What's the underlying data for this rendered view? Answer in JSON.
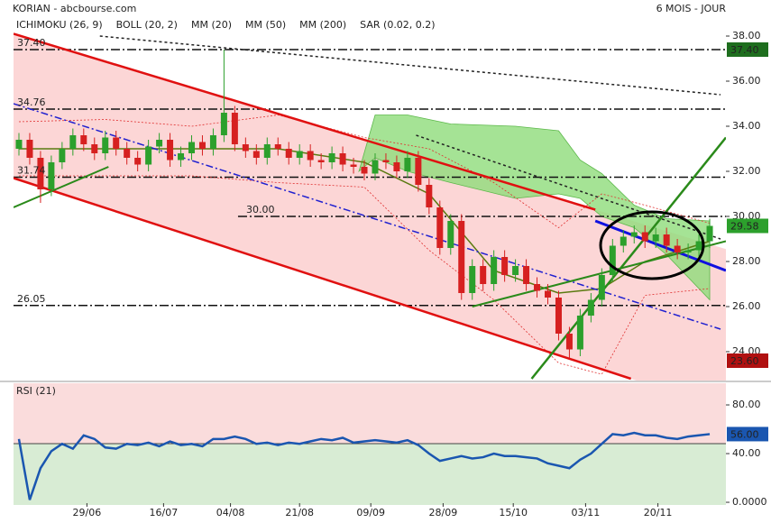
{
  "chart_data": {
    "type": "candlestick",
    "title": "KORIAN - abcbourse.com",
    "period": "6 MOIS - JOUR",
    "x": [
      0,
      1,
      2,
      3,
      4,
      5,
      6,
      7,
      8,
      9,
      10,
      11,
      12,
      13,
      14,
      15,
      16,
      17,
      18,
      19,
      20,
      21,
      22,
      23,
      24,
      25,
      26,
      27,
      28,
      29,
      30,
      31,
      32,
      33,
      34,
      35,
      36,
      37,
      38,
      39,
      40,
      41,
      42,
      43,
      44,
      45,
      46,
      47,
      48,
      49,
      50,
      51,
      52,
      53,
      54,
      55,
      56,
      57,
      58,
      59,
      60,
      61,
      62,
      63,
      64
    ],
    "open": [
      33.0,
      33.4,
      32.6,
      31.2,
      32.4,
      33.0,
      33.6,
      33.2,
      32.8,
      33.5,
      33.0,
      32.6,
      32.3,
      33.1,
      33.4,
      32.5,
      32.8,
      33.3,
      33.0,
      33.6,
      34.6,
      33.2,
      32.9,
      32.6,
      33.2,
      33.0,
      32.6,
      32.9,
      32.5,
      32.4,
      32.8,
      32.3,
      32.2,
      31.9,
      32.5,
      32.4,
      32.0,
      32.6,
      31.4,
      30.4,
      28.6,
      29.8,
      26.6,
      27.8,
      27.0,
      28.2,
      27.4,
      27.8,
      27.0,
      26.7,
      26.4,
      24.8,
      24.1,
      25.6,
      26.3,
      27.4,
      28.7,
      29.1,
      29.3,
      28.9,
      29.2,
      28.7,
      28.4,
      28.5,
      28.9
    ],
    "high": [
      33.7,
      33.7,
      32.9,
      32.7,
      33.3,
      33.9,
      33.9,
      33.5,
      33.8,
      33.8,
      33.3,
      32.9,
      33.4,
      33.7,
      33.7,
      33.1,
      33.6,
      33.6,
      33.9,
      37.4,
      34.9,
      33.5,
      33.2,
      33.5,
      33.5,
      33.3,
      33.2,
      33.2,
      32.8,
      33.1,
      33.1,
      32.6,
      32.5,
      32.8,
      32.8,
      32.7,
      32.9,
      32.9,
      31.7,
      30.7,
      30.1,
      30.1,
      28.1,
      28.1,
      28.5,
      28.5,
      28.1,
      28.1,
      27.3,
      27.0,
      26.7,
      25.1,
      25.9,
      26.6,
      27.7,
      29.0,
      29.4,
      29.6,
      29.6,
      29.5,
      29.5,
      29.0,
      28.8,
      29.2,
      29.9
    ],
    "low": [
      32.7,
      32.3,
      30.6,
      30.9,
      32.1,
      32.7,
      32.9,
      32.5,
      32.5,
      32.7,
      32.3,
      32.0,
      32.0,
      32.8,
      32.2,
      32.2,
      32.5,
      32.7,
      32.7,
      33.3,
      32.9,
      32.6,
      32.3,
      32.3,
      32.7,
      32.3,
      32.3,
      32.2,
      32.1,
      32.1,
      32.0,
      31.9,
      31.6,
      31.6,
      32.1,
      31.7,
      31.7,
      31.1,
      30.1,
      28.3,
      28.3,
      26.3,
      26.3,
      26.7,
      26.7,
      27.1,
      27.1,
      26.7,
      26.4,
      26.1,
      24.5,
      23.7,
      23.8,
      25.3,
      26.0,
      27.1,
      28.4,
      28.8,
      28.6,
      28.6,
      28.4,
      28.1,
      28.1,
      28.2,
      28.6
    ],
    "close": [
      33.4,
      32.6,
      31.2,
      32.4,
      33.0,
      33.6,
      33.2,
      32.8,
      33.5,
      33.0,
      32.6,
      32.3,
      33.1,
      33.4,
      32.5,
      32.8,
      33.3,
      33.0,
      33.6,
      34.6,
      33.2,
      32.9,
      32.6,
      33.2,
      33.0,
      32.6,
      32.9,
      32.5,
      32.4,
      32.8,
      32.3,
      32.2,
      31.9,
      32.5,
      32.4,
      32.0,
      32.6,
      31.4,
      30.4,
      28.6,
      29.8,
      26.6,
      27.8,
      27.0,
      28.2,
      27.4,
      27.8,
      27.0,
      26.7,
      26.4,
      24.8,
      24.1,
      25.6,
      26.3,
      27.4,
      28.7,
      29.1,
      29.3,
      28.9,
      29.2,
      28.7,
      28.4,
      28.5,
      28.9,
      29.58
    ],
    "close_label": {
      "value": 29.58,
      "label": "29.58",
      "color": "#2ca02c"
    },
    "up_color": "#2ca02c",
    "down_color": "#d62020",
    "xlim": [
      -0.5,
      65.5
    ],
    "ylim": [
      22.72,
      38.4
    ],
    "xticks": [
      {
        "value": 6.3,
        "label": "29/06"
      },
      {
        "value": 13.4,
        "label": "16/07"
      },
      {
        "value": 19.6,
        "label": "04/08"
      },
      {
        "value": 26.0,
        "label": "21/08"
      },
      {
        "value": 32.6,
        "label": "09/09"
      },
      {
        "value": 39.3,
        "label": "28/09"
      },
      {
        "value": 45.8,
        "label": "15/10"
      },
      {
        "value": 52.5,
        "label": "03/11"
      },
      {
        "value": 59.2,
        "label": "20/11"
      }
    ],
    "yticks": [
      {
        "value": 24,
        "label": "24.00"
      },
      {
        "value": 26,
        "label": "26.00"
      },
      {
        "value": 28,
        "label": "28.00"
      },
      {
        "value": 30,
        "label": "30.00"
      },
      {
        "value": 32,
        "label": "32.00"
      },
      {
        "value": 34,
        "label": "34.00"
      },
      {
        "value": 36,
        "label": "36.00"
      },
      {
        "value": 38,
        "label": "38.00"
      }
    ],
    "series": [
      {
        "name": "ICHIMOKU (26, 9)",
        "color": "#1a1aa0",
        "fill": "#8fdc7a",
        "x": [
          31.5,
          33,
          36,
          40,
          46,
          50,
          52,
          54,
          57,
          60,
          64
        ],
        "upper": [
          32.0,
          34.5,
          34.5,
          34.1,
          34.0,
          33.8,
          32.5,
          31.9,
          30.5,
          29.9,
          29.8
        ],
        "lower": [
          32.0,
          32.6,
          32.0,
          31.5,
          30.8,
          31.0,
          30.8,
          30.0,
          29.5,
          28.3,
          26.3
        ]
      },
      {
        "name": "BOLL (20, 2)",
        "color": "#e03030",
        "x": [
          0,
          8,
          16,
          24,
          32,
          38,
          44,
          50,
          54,
          58,
          64
        ],
        "upper": [
          34.2,
          34.3,
          34.0,
          34.5,
          33.5,
          33.0,
          31.5,
          29.5,
          31.0,
          30.5,
          29.7
        ],
        "lower": [
          31.8,
          31.8,
          31.8,
          31.5,
          31.3,
          28.5,
          26.3,
          23.5,
          23.0,
          26.5,
          26.8
        ]
      },
      {
        "name": "MM (20)",
        "color": "#5a7a10",
        "x": [
          0,
          8,
          16,
          24,
          32,
          38,
          44,
          50,
          54,
          58,
          64
        ],
        "values": [
          33.0,
          33.0,
          33.0,
          33.0,
          32.4,
          31.0,
          27.6,
          26.6,
          26.8,
          28.0,
          28.9
        ]
      },
      {
        "name": "MM (50)",
        "color": "#e02020"
      },
      {
        "name": "MM (200)",
        "color": "#2020d0"
      },
      {
        "name": "SAR (0.02, 0.2)",
        "color": "#b01010",
        "last_label": {
          "value": 23.6,
          "label": "23.60"
        }
      }
    ],
    "levels": [
      {
        "value": 37.4,
        "label": "37.40",
        "x_start": -0.5,
        "box": "#1e6e1e"
      },
      {
        "value": 34.76,
        "label": "34.76",
        "x_start": -0.5
      },
      {
        "value": 31.74,
        "label": "31.74",
        "x_start": -0.5
      },
      {
        "value": 30.0,
        "label": "30.00",
        "x_start": 20.3
      },
      {
        "value": 26.05,
        "label": "26.05",
        "x_start": -0.5
      }
    ],
    "trendlines": [
      {
        "color": "#e01010",
        "width": 2.5,
        "style": "solid",
        "channel": true,
        "points": [
          [
            -0.5,
            38.1
          ],
          [
            53.4,
            30.3
          ]
        ]
      },
      {
        "color": "#e01010",
        "width": 2.5,
        "style": "solid",
        "channel": true,
        "points": [
          [
            -0.5,
            31.7
          ],
          [
            56.7,
            22.8
          ]
        ]
      },
      {
        "color": "#1010e0",
        "width": 3,
        "style": "solid",
        "points": [
          [
            53.4,
            29.8
          ],
          [
            65.5,
            27.6
          ]
        ]
      },
      {
        "color": "#2020d0",
        "width": 1.5,
        "style": "dashdot",
        "points": [
          [
            -0.5,
            35.0
          ],
          [
            65,
            25.0
          ]
        ]
      },
      {
        "color": "#222222",
        "width": 1.5,
        "style": "dotted",
        "points": [
          [
            7.5,
            38.0
          ],
          [
            65,
            35.4
          ]
        ]
      },
      {
        "color": "#222222",
        "width": 1.5,
        "style": "dotted",
        "points": [
          [
            36.8,
            33.6
          ],
          [
            65,
            29.0
          ]
        ]
      },
      {
        "color": "#2a8a1a",
        "width": 2,
        "style": "solid",
        "points": [
          [
            -0.5,
            30.4
          ],
          [
            8.3,
            32.2
          ]
        ]
      },
      {
        "color": "#2a8a1a",
        "width": 2,
        "style": "solid",
        "points": [
          [
            42,
            26.0
          ],
          [
            65.5,
            28.9
          ]
        ]
      },
      {
        "color": "#2a8a1a",
        "width": 2.5,
        "style": "solid",
        "points": [
          [
            47.5,
            22.8
          ],
          [
            65.5,
            33.5
          ]
        ]
      }
    ],
    "rsi": {
      "title": "RSI (21)",
      "color": "#1a56b0",
      "values": [
        52,
        2,
        28,
        42,
        48,
        44,
        55,
        52,
        45,
        44,
        48,
        47,
        49,
        46,
        50,
        47,
        48,
        46,
        52,
        52,
        54,
        52,
        48,
        49,
        47,
        49,
        48,
        50,
        52,
        51,
        53,
        49,
        50,
        51,
        50,
        49,
        51,
        47,
        40,
        34,
        36,
        38,
        36,
        37,
        40,
        38,
        38,
        37,
        36,
        32,
        30,
        28,
        35,
        40,
        48,
        56,
        55,
        57,
        55,
        55,
        53,
        52,
        54,
        55,
        56
      ],
      "ylim": [
        -2.2,
        97.8
      ],
      "yticks": [
        {
          "value": 0,
          "label": "0.0000"
        },
        {
          "value": 40,
          "label": "40.00"
        },
        {
          "value": 80,
          "label": "80.00"
        }
      ],
      "last_label": {
        "value": 56,
        "label": "56.00"
      }
    }
  }
}
